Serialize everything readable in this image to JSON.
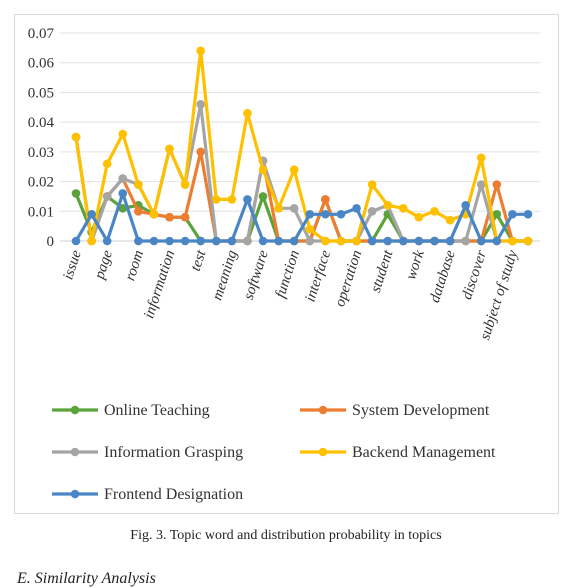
{
  "chart_data": {
    "type": "line",
    "categories": [
      "issue",
      "",
      "page",
      "",
      "room",
      "",
      "information",
      "",
      "test",
      "",
      "meaning",
      "",
      "software",
      "",
      "function",
      "",
      "interface",
      "",
      "operation",
      "",
      "student",
      "",
      "work",
      "",
      "database",
      "",
      "discover",
      "",
      "subject of study",
      ""
    ],
    "ylim": [
      0,
      0.07
    ],
    "yticks": [
      "0",
      "0.01",
      "0.02",
      "0.03",
      "0.04",
      "0.05",
      "0.06",
      "0.07"
    ],
    "grid": true,
    "legend_position": "bottom",
    "series": [
      {
        "name": "Online Teaching",
        "color": "#5aa33a",
        "values": [
          0.016,
          0.003,
          0.015,
          0.011,
          0.012,
          0.009,
          0.008,
          0.008,
          0,
          0,
          0,
          0,
          0.015,
          0,
          0,
          0,
          0.014,
          0,
          0,
          0,
          0.009,
          0,
          0,
          0,
          0,
          0,
          0,
          0.009,
          0,
          0
        ]
      },
      {
        "name": "System Development",
        "color": "#ed7d31",
        "values": [
          0.035,
          0,
          0.015,
          0.021,
          0.01,
          0.009,
          0.008,
          0.008,
          0.03,
          0,
          0,
          0,
          0.027,
          0,
          0,
          0,
          0.014,
          0,
          0,
          0,
          0,
          0,
          0,
          0,
          0,
          0,
          0,
          0.019,
          0,
          0
        ]
      },
      {
        "name": "Information Grasping",
        "color": "#a5a5a5",
        "values": [
          0.035,
          0,
          0.015,
          0.021,
          0.019,
          0.009,
          0.031,
          0.019,
          0.046,
          0,
          0,
          0,
          0.027,
          0.011,
          0.011,
          0,
          0,
          0,
          0,
          0.01,
          0.012,
          0,
          0,
          0,
          0,
          0,
          0.019,
          0,
          0,
          0
        ]
      },
      {
        "name": "Backend Management",
        "color": "#ffc000",
        "values": [
          0.035,
          0,
          0.026,
          0.036,
          0.019,
          0.009,
          0.031,
          0.019,
          0.064,
          0.014,
          0.014,
          0.043,
          0.024,
          0.011,
          0.024,
          0.004,
          0,
          0,
          0,
          0.019,
          0.012,
          0.011,
          0.008,
          0.01,
          0.007,
          0.009,
          0.028,
          0,
          0,
          0
        ]
      },
      {
        "name": "Frontend Designation",
        "color": "#4a86c6",
        "values": [
          0,
          0.009,
          0,
          0.016,
          0,
          0,
          0,
          0,
          0,
          0,
          0,
          0.014,
          0,
          0,
          0,
          0.009,
          0.009,
          0.009,
          0.011,
          0,
          0,
          0,
          0,
          0,
          0,
          0.012,
          0,
          0,
          0.009,
          0.009
        ]
      }
    ]
  },
  "caption": "Fig. 3. Topic word and distribution probability in topics",
  "section_heading": "E.   Similarity Analysis"
}
